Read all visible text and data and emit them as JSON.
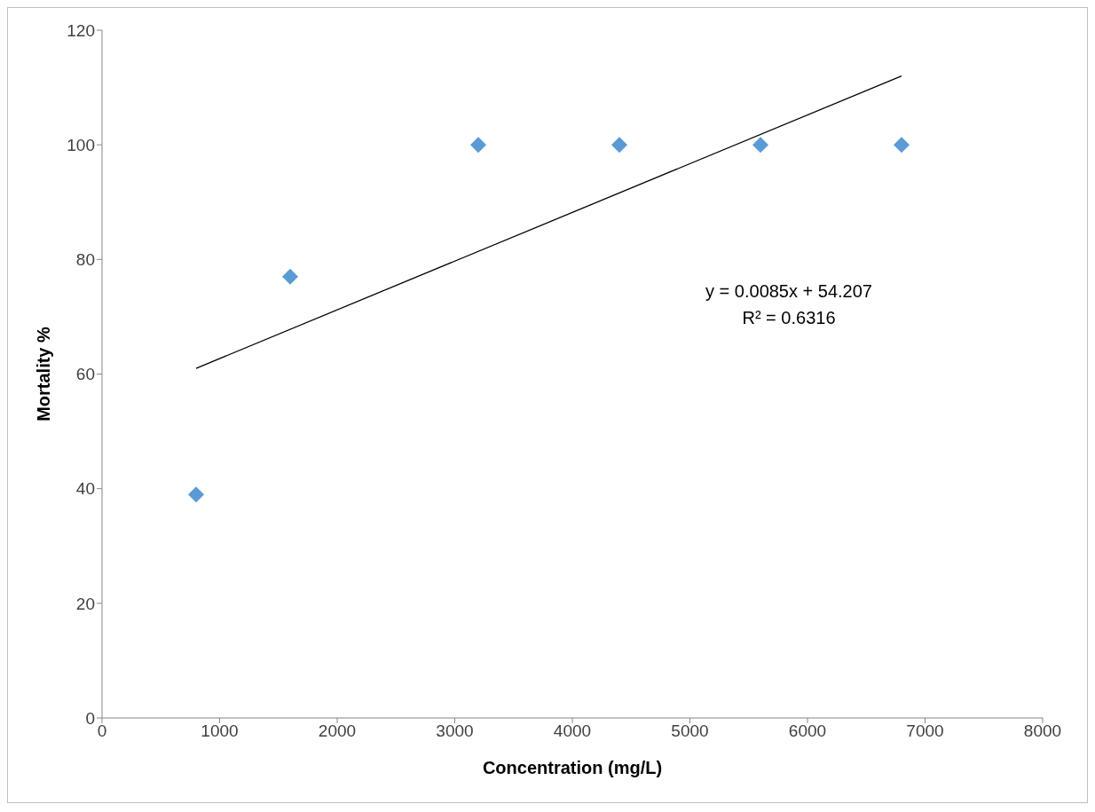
{
  "chart_data": {
    "type": "scatter",
    "xlabel": "Concentration (mg/L)",
    "ylabel": "Mortality %",
    "series": [
      {
        "color": "#5b9bd5",
        "marker": "diamond",
        "x": [
          800,
          1600,
          3200,
          4400,
          5600,
          6800
        ],
        "values": [
          39,
          77,
          100,
          100,
          100,
          100
        ]
      },
      {
        "type": "line",
        "color": "#000000",
        "marker": "none",
        "x": [
          800,
          6800
        ],
        "values": [
          61,
          112
        ]
      }
    ],
    "xlim": [
      0,
      8000
    ],
    "xticks": [
      0,
      1000,
      2000,
      3000,
      4000,
      5000,
      6000,
      7000,
      8000
    ],
    "ylim": [
      0,
      120
    ],
    "yticks": [
      0,
      20,
      40,
      60,
      80,
      100,
      120
    ],
    "grid": false,
    "legend": false,
    "annotations": [
      "y = 0.0085x + 54.207",
      "R² = 0.6316"
    ]
  }
}
